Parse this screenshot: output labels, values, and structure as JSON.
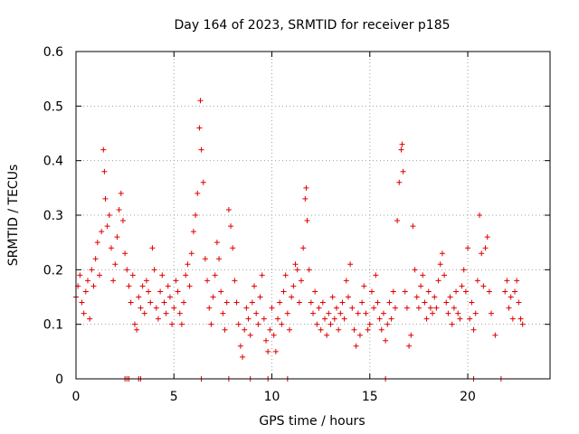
{
  "chart_data": {
    "type": "scatter",
    "title": "Day 164 of 2023, SRMTID for receiver p185",
    "xlabel": "GPS time / hours",
    "ylabel": "SRMTID / TECUs",
    "xlim": [
      0,
      24.2
    ],
    "ylim": [
      0,
      0.6
    ],
    "x_ticks": [
      0,
      5,
      10,
      15,
      20
    ],
    "x_tick_labels": [
      "0",
      "5",
      "10",
      "15",
      "20"
    ],
    "y_ticks": [
      0,
      0.1,
      0.2,
      0.3,
      0.4,
      0.5,
      0.6
    ],
    "y_tick_labels": [
      "0",
      "0.1",
      "0.2",
      "0.3",
      "0.4",
      "0.5",
      "0.6"
    ],
    "grid": true,
    "legend": "none",
    "marker": "+",
    "series": [
      {
        "name": "SRMTID",
        "color": "#e00000",
        "points": [
          [
            0.0,
            0.15
          ],
          [
            0.1,
            0.17
          ],
          [
            0.2,
            0.19
          ],
          [
            0.3,
            0.14
          ],
          [
            0.4,
            0.12
          ],
          [
            0.5,
            0.16
          ],
          [
            0.6,
            0.18
          ],
          [
            0.7,
            0.11
          ],
          [
            0.8,
            0.2
          ],
          [
            0.9,
            0.17
          ],
          [
            1.0,
            0.22
          ],
          [
            1.1,
            0.25
          ],
          [
            1.2,
            0.19
          ],
          [
            1.3,
            0.27
          ],
          [
            1.4,
            0.42
          ],
          [
            1.45,
            0.38
          ],
          [
            1.5,
            0.33
          ],
          [
            1.6,
            0.28
          ],
          [
            1.7,
            0.3
          ],
          [
            1.8,
            0.24
          ],
          [
            1.9,
            0.18
          ],
          [
            2.0,
            0.21
          ],
          [
            2.1,
            0.26
          ],
          [
            2.2,
            0.31
          ],
          [
            2.3,
            0.34
          ],
          [
            2.4,
            0.29
          ],
          [
            2.5,
            0.23
          ],
          [
            2.6,
            0.2
          ],
          [
            2.7,
            0.17
          ],
          [
            2.8,
            0.14
          ],
          [
            2.9,
            0.19
          ],
          [
            3.0,
            0.1
          ],
          [
            3.1,
            0.09
          ],
          [
            3.2,
            0.15
          ],
          [
            3.3,
            0.13
          ],
          [
            3.4,
            0.17
          ],
          [
            3.5,
            0.12
          ],
          [
            3.6,
            0.18
          ],
          [
            3.7,
            0.16
          ],
          [
            3.8,
            0.14
          ],
          [
            3.9,
            0.24
          ],
          [
            4.0,
            0.2
          ],
          [
            4.1,
            0.13
          ],
          [
            4.2,
            0.11
          ],
          [
            4.3,
            0.16
          ],
          [
            4.4,
            0.19
          ],
          [
            4.5,
            0.14
          ],
          [
            4.6,
            0.12
          ],
          [
            4.7,
            0.17
          ],
          [
            4.8,
            0.15
          ],
          [
            4.9,
            0.1
          ],
          [
            5.0,
            0.13
          ],
          [
            5.1,
            0.18
          ],
          [
            5.2,
            0.16
          ],
          [
            5.3,
            0.12
          ],
          [
            5.4,
            0.1
          ],
          [
            5.5,
            0.14
          ],
          [
            5.6,
            0.19
          ],
          [
            5.7,
            0.21
          ],
          [
            5.8,
            0.17
          ],
          [
            5.9,
            0.23
          ],
          [
            6.0,
            0.27
          ],
          [
            6.1,
            0.3
          ],
          [
            6.2,
            0.34
          ],
          [
            6.3,
            0.46
          ],
          [
            6.35,
            0.51
          ],
          [
            6.4,
            0.42
          ],
          [
            6.5,
            0.36
          ],
          [
            6.6,
            0.22
          ],
          [
            6.7,
            0.18
          ],
          [
            6.8,
            0.13
          ],
          [
            6.9,
            0.1
          ],
          [
            7.0,
            0.15
          ],
          [
            7.1,
            0.19
          ],
          [
            7.2,
            0.25
          ],
          [
            7.3,
            0.22
          ],
          [
            7.4,
            0.16
          ],
          [
            7.5,
            0.12
          ],
          [
            7.6,
            0.09
          ],
          [
            7.7,
            0.14
          ],
          [
            7.8,
            0.31
          ],
          [
            7.9,
            0.28
          ],
          [
            8.0,
            0.24
          ],
          [
            8.1,
            0.18
          ],
          [
            8.2,
            0.14
          ],
          [
            8.3,
            0.1
          ],
          [
            8.4,
            0.06
          ],
          [
            8.5,
            0.04
          ],
          [
            8.6,
            0.09
          ],
          [
            8.7,
            0.13
          ],
          [
            8.8,
            0.11
          ],
          [
            8.9,
            0.08
          ],
          [
            9.0,
            0.14
          ],
          [
            9.1,
            0.17
          ],
          [
            9.2,
            0.12
          ],
          [
            9.3,
            0.1
          ],
          [
            9.4,
            0.15
          ],
          [
            9.5,
            0.19
          ],
          [
            9.6,
            0.11
          ],
          [
            9.7,
            0.07
          ],
          [
            9.8,
            0.05
          ],
          [
            9.9,
            0.09
          ],
          [
            10.0,
            0.13
          ],
          [
            10.1,
            0.08
          ],
          [
            10.2,
            0.05
          ],
          [
            10.3,
            0.11
          ],
          [
            10.4,
            0.14
          ],
          [
            10.5,
            0.1
          ],
          [
            10.6,
            0.16
          ],
          [
            10.7,
            0.19
          ],
          [
            10.8,
            0.12
          ],
          [
            10.9,
            0.09
          ],
          [
            11.0,
            0.15
          ],
          [
            11.1,
            0.17
          ],
          [
            11.2,
            0.21
          ],
          [
            11.3,
            0.2
          ],
          [
            11.4,
            0.14
          ],
          [
            11.5,
            0.18
          ],
          [
            11.6,
            0.24
          ],
          [
            11.7,
            0.33
          ],
          [
            11.75,
            0.35
          ],
          [
            11.8,
            0.29
          ],
          [
            11.9,
            0.2
          ],
          [
            12.0,
            0.14
          ],
          [
            12.1,
            0.12
          ],
          [
            12.2,
            0.16
          ],
          [
            12.3,
            0.1
          ],
          [
            12.4,
            0.13
          ],
          [
            12.5,
            0.09
          ],
          [
            12.6,
            0.14
          ],
          [
            12.7,
            0.11
          ],
          [
            12.8,
            0.08
          ],
          [
            12.9,
            0.12
          ],
          [
            13.0,
            0.1
          ],
          [
            13.1,
            0.15
          ],
          [
            13.2,
            0.11
          ],
          [
            13.3,
            0.13
          ],
          [
            13.4,
            0.09
          ],
          [
            13.5,
            0.12
          ],
          [
            13.6,
            0.14
          ],
          [
            13.7,
            0.11
          ],
          [
            13.8,
            0.18
          ],
          [
            13.9,
            0.15
          ],
          [
            14.0,
            0.21
          ],
          [
            14.1,
            0.13
          ],
          [
            14.2,
            0.09
          ],
          [
            14.3,
            0.06
          ],
          [
            14.4,
            0.12
          ],
          [
            14.5,
            0.08
          ],
          [
            14.6,
            0.14
          ],
          [
            14.7,
            0.17
          ],
          [
            14.8,
            0.12
          ],
          [
            14.9,
            0.09
          ],
          [
            15.0,
            0.1
          ],
          [
            15.1,
            0.16
          ],
          [
            15.2,
            0.13
          ],
          [
            15.3,
            0.19
          ],
          [
            15.4,
            0.14
          ],
          [
            15.5,
            0.11
          ],
          [
            15.6,
            0.09
          ],
          [
            15.7,
            0.12
          ],
          [
            15.8,
            0.07
          ],
          [
            15.9,
            0.1
          ],
          [
            16.0,
            0.14
          ],
          [
            16.1,
            0.11
          ],
          [
            16.2,
            0.16
          ],
          [
            16.3,
            0.13
          ],
          [
            16.4,
            0.29
          ],
          [
            16.5,
            0.36
          ],
          [
            16.6,
            0.42
          ],
          [
            16.65,
            0.43
          ],
          [
            16.7,
            0.38
          ],
          [
            16.8,
            0.16
          ],
          [
            16.9,
            0.13
          ],
          [
            17.0,
            0.06
          ],
          [
            17.1,
            0.08
          ],
          [
            17.2,
            0.28
          ],
          [
            17.3,
            0.2
          ],
          [
            17.4,
            0.15
          ],
          [
            17.5,
            0.13
          ],
          [
            17.6,
            0.17
          ],
          [
            17.7,
            0.19
          ],
          [
            17.8,
            0.14
          ],
          [
            17.9,
            0.11
          ],
          [
            18.0,
            0.16
          ],
          [
            18.1,
            0.13
          ],
          [
            18.2,
            0.12
          ],
          [
            18.3,
            0.15
          ],
          [
            18.4,
            0.13
          ],
          [
            18.5,
            0.18
          ],
          [
            18.6,
            0.21
          ],
          [
            18.7,
            0.23
          ],
          [
            18.8,
            0.19
          ],
          [
            18.9,
            0.14
          ],
          [
            19.0,
            0.12
          ],
          [
            19.1,
            0.15
          ],
          [
            19.2,
            0.1
          ],
          [
            19.3,
            0.13
          ],
          [
            19.4,
            0.16
          ],
          [
            19.5,
            0.12
          ],
          [
            19.6,
            0.11
          ],
          [
            19.7,
            0.17
          ],
          [
            19.8,
            0.2
          ],
          [
            19.9,
            0.16
          ],
          [
            20.0,
            0.24
          ],
          [
            20.1,
            0.11
          ],
          [
            20.2,
            0.14
          ],
          [
            20.3,
            0.09
          ],
          [
            20.4,
            0.12
          ],
          [
            20.5,
            0.18
          ],
          [
            20.6,
            0.3
          ],
          [
            20.7,
            0.23
          ],
          [
            20.8,
            0.17
          ],
          [
            20.9,
            0.24
          ],
          [
            21.0,
            0.26
          ],
          [
            21.1,
            0.16
          ],
          [
            21.2,
            0.12
          ],
          [
            21.4,
            0.08
          ],
          [
            21.9,
            0.16
          ],
          [
            22.0,
            0.18
          ],
          [
            22.1,
            0.13
          ],
          [
            22.2,
            0.15
          ],
          [
            22.3,
            0.11
          ],
          [
            22.4,
            0.16
          ],
          [
            22.5,
            0.18
          ],
          [
            22.6,
            0.14
          ],
          [
            22.7,
            0.11
          ],
          [
            22.8,
            0.1
          ]
        ]
      }
    ],
    "zero_markers_x": [
      2.5,
      2.6,
      2.7,
      3.2,
      3.3,
      6.4,
      7.8,
      8.9,
      9.8,
      10.8,
      15.8,
      20.3,
      21.7
    ]
  }
}
